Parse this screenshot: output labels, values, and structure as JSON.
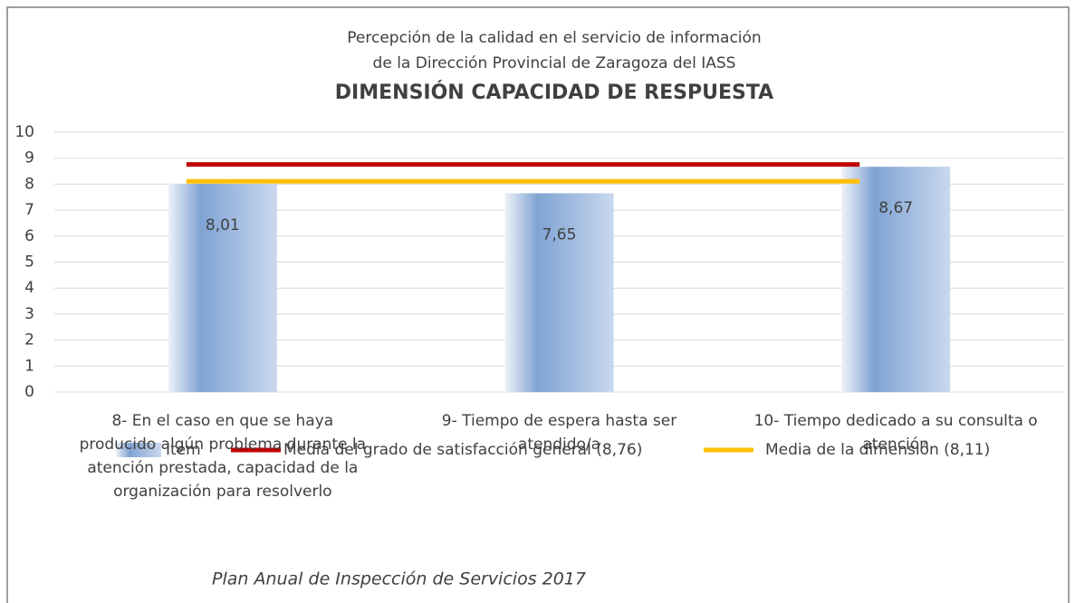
{
  "chart_data": {
    "type": "bar",
    "title_lines": [
      "Percepción de la calidad en el servicio de información",
      "de la Dirección Provincial de Zaragoza del IASS"
    ],
    "title": "DIMENSIÓN CAPACIDAD DE RESPUESTA",
    "categories": [
      "8- En el caso en que se haya producido algún problema durante la atención prestada, capacidad de la organización para resolverlo",
      "9- Tiempo de espera hasta ser atendido/a",
      "10- Tiempo dedicado a su consulta o atención"
    ],
    "series": [
      {
        "name": "Item",
        "type": "bar",
        "color": "#7fa3d3",
        "values": [
          8.01,
          7.65,
          8.67
        ],
        "value_labels": [
          "8,01",
          "7,65",
          "8,67"
        ]
      },
      {
        "name": "Media del grado de satisfacción general (8,76)",
        "type": "line",
        "color": "#c00000",
        "values": [
          8.76,
          8.76,
          8.76
        ]
      },
      {
        "name": "Media de la dimensión (8,11)",
        "type": "line",
        "color": "#ffc000",
        "values": [
          8.11,
          8.11,
          8.11
        ]
      }
    ],
    "ylim": [
      0,
      10
    ],
    "yticks": [
      0,
      1,
      2,
      3,
      4,
      5,
      6,
      7,
      8,
      9,
      10
    ],
    "grid": true,
    "legend": "bottom",
    "footer": "Plan Anual de Inspección de Servicios 2017"
  }
}
